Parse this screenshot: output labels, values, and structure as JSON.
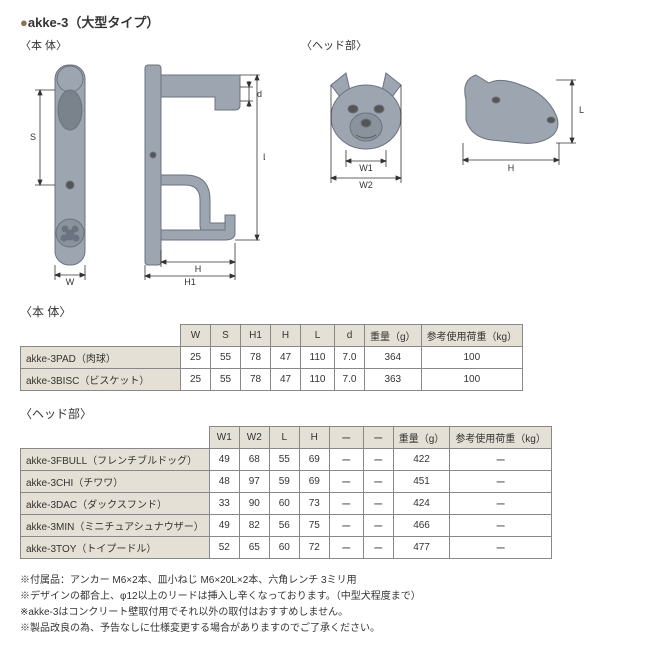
{
  "title": "akke-3（大型タイプ）",
  "body_label": "〈本 体〉",
  "head_label": "〈ヘッド部〉",
  "tables": {
    "body": {
      "label": "〈本 体〉",
      "columns": [
        "",
        "W",
        "S",
        "H1",
        "H",
        "L",
        "d",
        "重量（g）",
        "参考使用荷重（kg）"
      ],
      "rows": [
        [
          "akke-3PAD（肉球）",
          "25",
          "55",
          "78",
          "47",
          "110",
          "7.0",
          "364",
          "100"
        ],
        [
          "akke-3BISC（ビスケット）",
          "25",
          "55",
          "78",
          "47",
          "110",
          "7.0",
          "363",
          "100"
        ]
      ],
      "col_widths": [
        "160px",
        "30px",
        "30px",
        "30px",
        "30px",
        "34px",
        "30px",
        "54px",
        "100px"
      ]
    },
    "head": {
      "label": "〈ヘッド部〉",
      "columns": [
        "",
        "W1",
        "W2",
        "L",
        "H",
        "ー",
        "ー",
        "重量（g）",
        "参考使用荷重（kg）"
      ],
      "rows": [
        [
          "akke-3FBULL（フレンチブルドッグ）",
          "49",
          "68",
          "55",
          "69",
          "ー",
          "ー",
          "422",
          "ー"
        ],
        [
          "akke-3CHI（チワワ）",
          "48",
          "97",
          "59",
          "69",
          "ー",
          "ー",
          "451",
          "ー"
        ],
        [
          "akke-3DAC（ダックスフンド）",
          "33",
          "90",
          "60",
          "73",
          "ー",
          "ー",
          "424",
          "ー"
        ],
        [
          "akke-3MIN（ミニチュアシュナウザー）",
          "49",
          "82",
          "56",
          "75",
          "ー",
          "ー",
          "466",
          "ー"
        ],
        [
          "akke-3TOY（トイプードル）",
          "52",
          "65",
          "60",
          "72",
          "ー",
          "ー",
          "477",
          "ー"
        ]
      ],
      "col_widths": [
        "160px",
        "30px",
        "30px",
        "30px",
        "30px",
        "34px",
        "30px",
        "54px",
        "100px"
      ]
    }
  },
  "notes": [
    "※付属品：アンカー M6×2本、皿小ねじ M6×20L×2本、六角レンチ 3ミリ用",
    "※デザインの都合上、φ12以上のリードは挿入し辛くなっております。（中型犬程度まで）",
    "※akke-3はコンクリート壁取付用でそれ以外の取付はおすすめしません。",
    "※製品改良の為、予告なしに仕様変更する場合がありますのでご了承ください。"
  ],
  "dim_labels": {
    "W": "W",
    "S": "S",
    "H": "H",
    "H1": "H1",
    "L": "L",
    "d": "d",
    "W1": "W1",
    "W2": "W2"
  },
  "diagram_color": "#9ca5b0",
  "dim_line_color": "#333333"
}
